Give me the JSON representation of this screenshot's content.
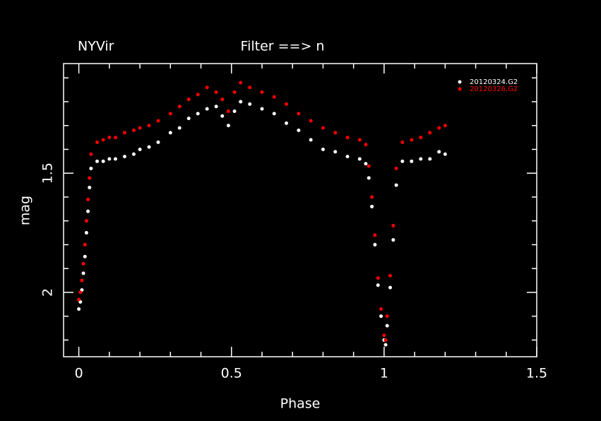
{
  "chart_data": {
    "type": "scatter",
    "label_left": "NYVir",
    "title": "Filter ==> n",
    "xlabel": "Phase",
    "ylabel": "mag",
    "xlim": [
      -0.05,
      1.5
    ],
    "xticks": [
      0,
      0.5,
      1,
      1.5
    ],
    "xminorticks": [
      0.1,
      0.2,
      0.3,
      0.4,
      0.6,
      0.7,
      0.8,
      0.9,
      1.1,
      1.2,
      1.3,
      1.4
    ],
    "ylim": [
      1.04,
      2.27
    ],
    "y_inverted": true,
    "yticks": [
      1.5,
      2
    ],
    "yminorticks": [
      1.1,
      1.2,
      1.3,
      1.4,
      1.6,
      1.7,
      1.8,
      1.9,
      2.1,
      2.2
    ],
    "legend": "upper right",
    "series": [
      {
        "name": "20120324.G2",
        "color": "#ffffff",
        "x": [
          0,
          0.005,
          0.01,
          0.015,
          0.02,
          0.025,
          0.03,
          0.035,
          0.04,
          0.06,
          0.08,
          0.1,
          0.12,
          0.15,
          0.18,
          0.2,
          0.23,
          0.26,
          0.3,
          0.33,
          0.36,
          0.39,
          0.42,
          0.45,
          0.47,
          0.49,
          0.51,
          0.53,
          0.56,
          0.6,
          0.64,
          0.68,
          0.72,
          0.76,
          0.8,
          0.84,
          0.88,
          0.92,
          0.94,
          0.95,
          0.96,
          0.97,
          0.98,
          0.99,
          1.0,
          1.005,
          1.01,
          1.02,
          1.03,
          1.04,
          1.06,
          1.09,
          1.12,
          1.15,
          1.18,
          1.2
        ],
        "values": [
          2.07,
          2.04,
          1.99,
          1.92,
          1.85,
          1.75,
          1.66,
          1.56,
          1.48,
          1.45,
          1.45,
          1.44,
          1.44,
          1.43,
          1.42,
          1.4,
          1.39,
          1.37,
          1.33,
          1.31,
          1.27,
          1.25,
          1.23,
          1.22,
          1.26,
          1.3,
          1.24,
          1.2,
          1.21,
          1.23,
          1.25,
          1.29,
          1.32,
          1.36,
          1.4,
          1.41,
          1.43,
          1.44,
          1.46,
          1.52,
          1.64,
          1.8,
          1.97,
          2.1,
          2.2,
          2.22,
          2.14,
          1.98,
          1.78,
          1.55,
          1.45,
          1.45,
          1.44,
          1.44,
          1.41,
          1.42
        ]
      },
      {
        "name": "20120326.G2",
        "color": "#ff0000",
        "x": [
          0,
          0.005,
          0.01,
          0.015,
          0.02,
          0.025,
          0.03,
          0.035,
          0.04,
          0.06,
          0.08,
          0.1,
          0.12,
          0.15,
          0.18,
          0.2,
          0.23,
          0.26,
          0.3,
          0.33,
          0.36,
          0.39,
          0.42,
          0.45,
          0.47,
          0.49,
          0.51,
          0.53,
          0.56,
          0.6,
          0.64,
          0.68,
          0.72,
          0.76,
          0.8,
          0.84,
          0.88,
          0.92,
          0.94,
          0.95,
          0.96,
          0.97,
          0.98,
          0.99,
          1.0,
          1.005,
          1.01,
          1.02,
          1.03,
          1.04,
          1.06,
          1.09,
          1.12,
          1.15,
          1.18,
          1.2
        ],
        "values": [
          2.03,
          2.0,
          1.95,
          1.88,
          1.8,
          1.7,
          1.61,
          1.52,
          1.42,
          1.37,
          1.36,
          1.35,
          1.35,
          1.33,
          1.32,
          1.31,
          1.3,
          1.28,
          1.25,
          1.22,
          1.19,
          1.17,
          1.14,
          1.16,
          1.19,
          1.24,
          1.16,
          1.12,
          1.14,
          1.16,
          1.18,
          1.21,
          1.25,
          1.28,
          1.31,
          1.33,
          1.35,
          1.36,
          1.38,
          1.47,
          1.6,
          1.76,
          1.94,
          2.07,
          2.18,
          2.2,
          2.1,
          1.93,
          1.72,
          1.48,
          1.37,
          1.36,
          1.35,
          1.33,
          1.31,
          1.3
        ]
      }
    ]
  }
}
